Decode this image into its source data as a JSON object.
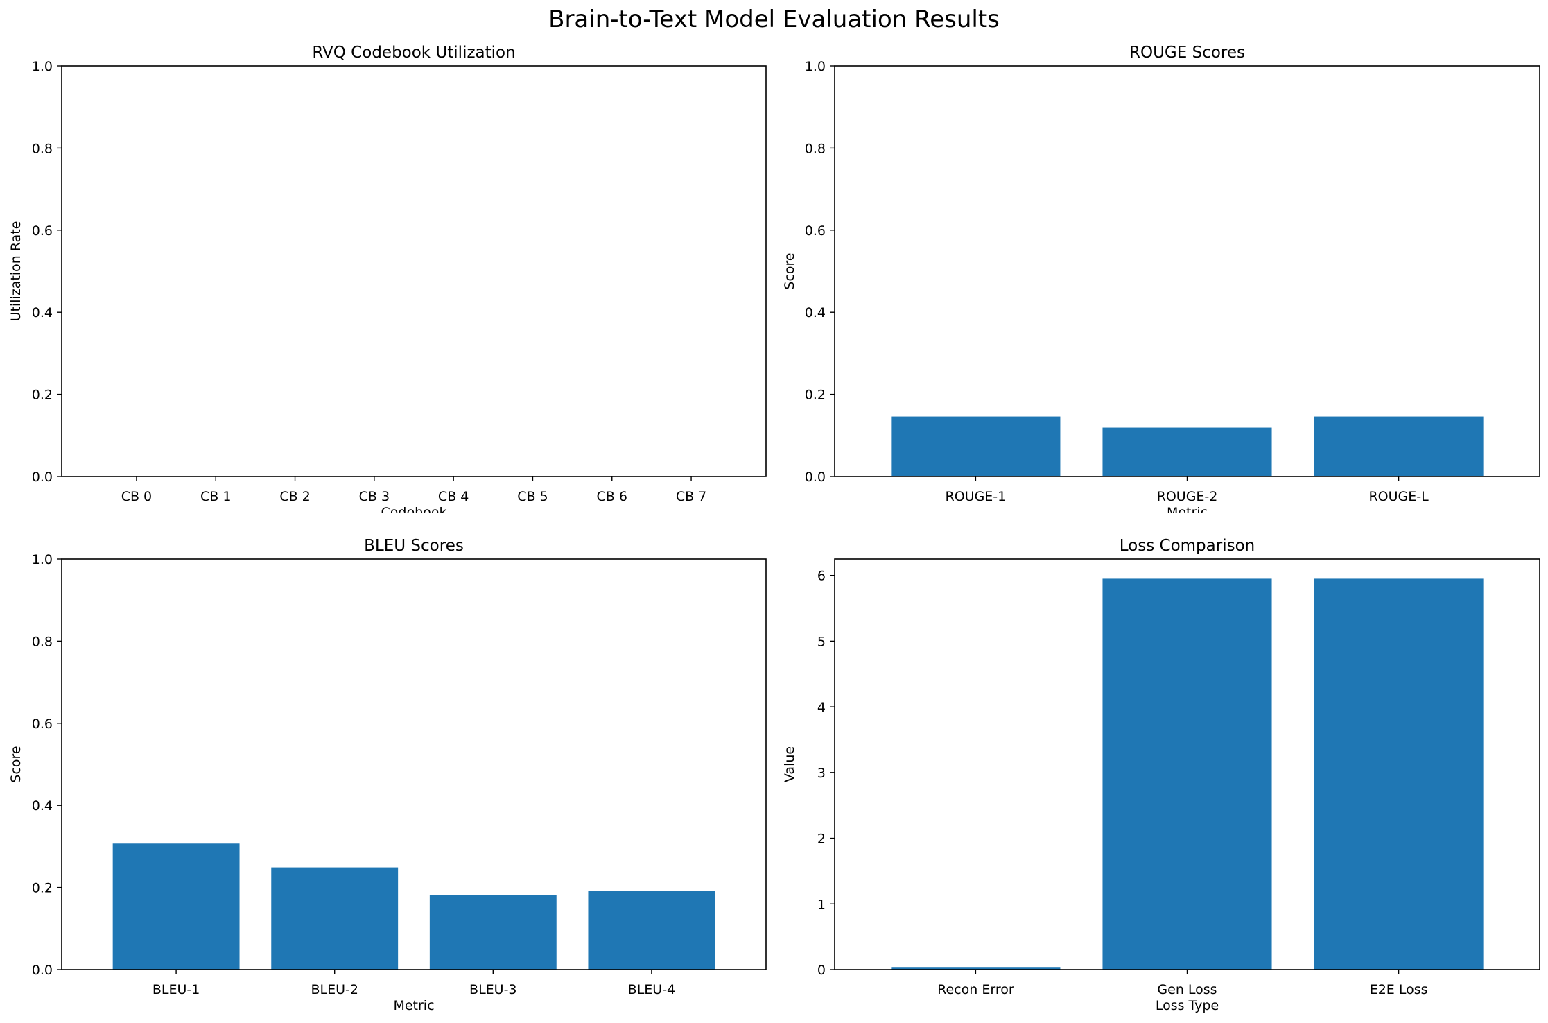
{
  "figure": {
    "title": "Brain-to-Text Model Evaluation Results"
  },
  "colors": {
    "bar": "#1f77b4",
    "axis": "#000000",
    "background": "#ffffff"
  },
  "chart_data": [
    {
      "type": "bar",
      "title": "RVQ Codebook Utilization",
      "xlabel": "Codebook",
      "ylabel": "Utilization Rate",
      "categories": [
        "CB 0",
        "CB 1",
        "CB 2",
        "CB 3",
        "CB 4",
        "CB 5",
        "CB 6",
        "CB 7"
      ],
      "values": [
        0,
        0,
        0,
        0,
        0,
        0,
        0,
        0
      ],
      "ylim": [
        0,
        1.0
      ],
      "yticks": [
        "0.0",
        "0.2",
        "0.4",
        "0.6",
        "0.8",
        "1.0"
      ],
      "grid": false
    },
    {
      "type": "bar",
      "title": "ROUGE Scores",
      "xlabel": "Metric",
      "ylabel": "Score",
      "categories": [
        "ROUGE-1",
        "ROUGE-2",
        "ROUGE-L"
      ],
      "values": [
        0.146,
        0.119,
        0.146
      ],
      "ylim": [
        0,
        1.0
      ],
      "yticks": [
        "0.0",
        "0.2",
        "0.4",
        "0.6",
        "0.8",
        "1.0"
      ],
      "grid": false
    },
    {
      "type": "bar",
      "title": "BLEU Scores",
      "xlabel": "Metric",
      "ylabel": "Score",
      "categories": [
        "BLEU-1",
        "BLEU-2",
        "BLEU-3",
        "BLEU-4"
      ],
      "values": [
        0.307,
        0.249,
        0.181,
        0.191
      ],
      "ylim": [
        0,
        1.0
      ],
      "yticks": [
        "0.0",
        "0.2",
        "0.4",
        "0.6",
        "0.8",
        "1.0"
      ],
      "grid": false
    },
    {
      "type": "bar",
      "title": "Loss Comparison",
      "xlabel": "Loss Type",
      "ylabel": "Value",
      "categories": [
        "Recon Error",
        "Gen Loss",
        "E2E Loss"
      ],
      "values": [
        0.04,
        5.95,
        5.95
      ],
      "ylim": [
        0,
        6.25
      ],
      "yticks": [
        "0",
        "1",
        "2",
        "3",
        "4",
        "5",
        "6"
      ],
      "grid": false
    }
  ]
}
